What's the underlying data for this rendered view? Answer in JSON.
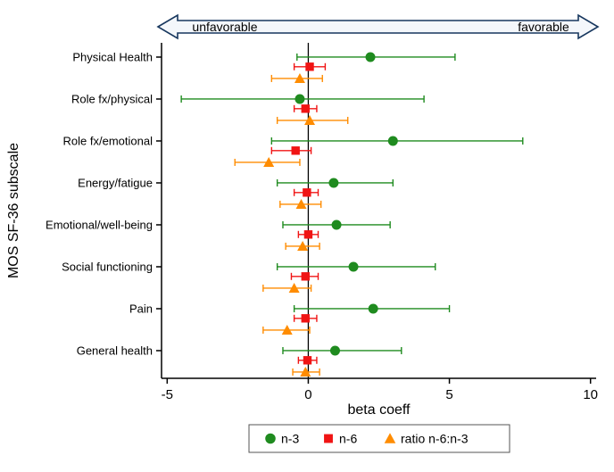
{
  "chart_data": {
    "type": "scatter",
    "subtype": "forest-plot",
    "title": "",
    "xlabel": "beta coeff",
    "ylabel": "MOS SF-36 subscale",
    "xlim": [
      -5.2,
      10.2
    ],
    "xticks": [
      -5,
      0,
      5,
      10
    ],
    "grid": false,
    "annotations": {
      "left": "unfavorable",
      "right": "favorable"
    },
    "arrow": {
      "stroke": "#17375e",
      "fill": "#f4f7fb"
    },
    "categories": [
      "Physical Health",
      "Role fx/physical",
      "Role fx/emotional",
      "Energy/fatigue",
      "Emotional/well-being",
      "Social functioning",
      "Pain",
      "General health"
    ],
    "series": [
      {
        "name": "n-3",
        "marker": "circle",
        "color": "#1f8b1f",
        "points": [
          {
            "est": 2.2,
            "lo": -0.4,
            "hi": 5.2
          },
          {
            "est": -0.3,
            "lo": -4.5,
            "hi": 4.1
          },
          {
            "est": 3.0,
            "lo": -1.3,
            "hi": 7.6
          },
          {
            "est": 0.9,
            "lo": -1.1,
            "hi": 3.0
          },
          {
            "est": 1.0,
            "lo": -0.9,
            "hi": 2.9
          },
          {
            "est": 1.6,
            "lo": -1.1,
            "hi": 4.5
          },
          {
            "est": 2.3,
            "lo": -0.5,
            "hi": 5.0
          },
          {
            "est": 0.95,
            "lo": -0.9,
            "hi": 3.3
          }
        ]
      },
      {
        "name": "n-6",
        "marker": "square",
        "color": "#f01414",
        "points": [
          {
            "est": 0.05,
            "lo": -0.5,
            "hi": 0.6
          },
          {
            "est": -0.1,
            "lo": -0.5,
            "hi": 0.3
          },
          {
            "est": -0.45,
            "lo": -1.3,
            "hi": 0.1
          },
          {
            "est": -0.05,
            "lo": -0.5,
            "hi": 0.35
          },
          {
            "est": 0.0,
            "lo": -0.35,
            "hi": 0.35
          },
          {
            "est": -0.1,
            "lo": -0.6,
            "hi": 0.35
          },
          {
            "est": -0.1,
            "lo": -0.5,
            "hi": 0.3
          },
          {
            "est": -0.03,
            "lo": -0.35,
            "hi": 0.3
          }
        ]
      },
      {
        "name": "ratio n-6:n-3",
        "marker": "triangle",
        "color": "#ff8c00",
        "points": [
          {
            "est": -0.3,
            "lo": -1.3,
            "hi": 0.5
          },
          {
            "est": 0.05,
            "lo": -1.1,
            "hi": 1.4
          },
          {
            "est": -1.4,
            "lo": -2.6,
            "hi": -0.3
          },
          {
            "est": -0.25,
            "lo": -1.0,
            "hi": 0.45
          },
          {
            "est": -0.2,
            "lo": -0.8,
            "hi": 0.4
          },
          {
            "est": -0.5,
            "lo": -1.6,
            "hi": 0.1
          },
          {
            "est": -0.75,
            "lo": -1.6,
            "hi": 0.05
          },
          {
            "est": -0.1,
            "lo": -0.55,
            "hi": 0.4
          }
        ]
      }
    ],
    "legend": {
      "position": "bottom",
      "entries": [
        "n-3",
        "n-6",
        "ratio n-6:n-3"
      ]
    }
  }
}
